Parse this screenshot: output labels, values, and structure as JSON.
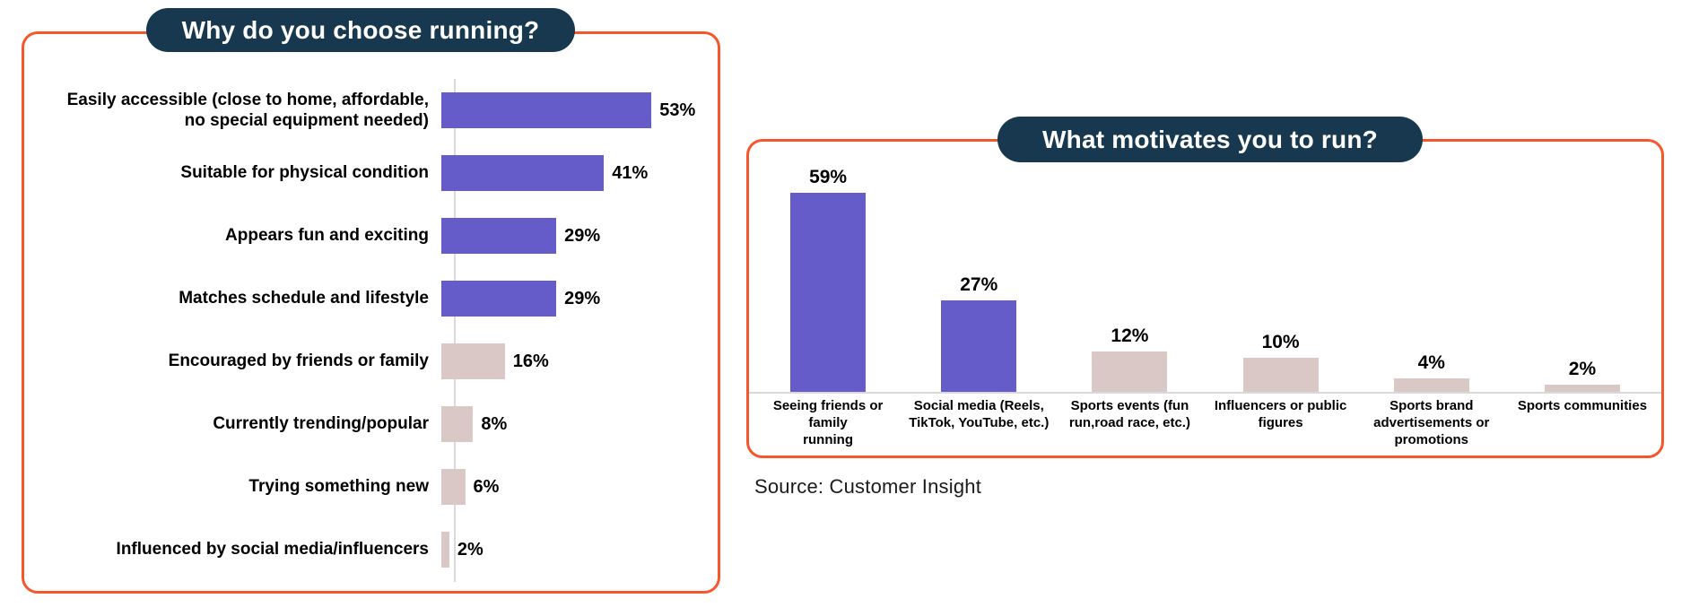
{
  "source": "Source: Customer Insight",
  "colors": {
    "purple": "#655BC9",
    "pink": "#D9C8C5",
    "navy": "#17384E",
    "orange": "#F5562B",
    "axis": "#D9D9D9"
  },
  "chart_data": [
    {
      "type": "bar",
      "orientation": "horizontal",
      "title": "Why do you choose running?",
      "categories": [
        "Easily accessible (close to home, affordable,\nno special equipment needed)",
        "Suitable for physical condition",
        "Appears fun and exciting",
        "Matches schedule and lifestyle",
        "Encouraged by friends or family",
        "Currently trending/popular",
        "Trying something new",
        "Influenced by social media/influencers"
      ],
      "values": [
        53,
        41,
        29,
        29,
        16,
        8,
        6,
        2
      ],
      "value_labels": [
        "53%",
        "41%",
        "29%",
        "29%",
        "16%",
        "8%",
        "6%",
        "2%"
      ],
      "bar_colors": [
        "purple",
        "purple",
        "purple",
        "purple",
        "pink",
        "pink",
        "pink",
        "pink"
      ],
      "xlim": [
        0,
        60
      ],
      "grid": false,
      "legend": false
    },
    {
      "type": "bar",
      "orientation": "vertical",
      "title": "What motivates you to run?",
      "categories": [
        "Seeing friends or family\nrunning",
        "Social media (Reels,\nTikTok, YouTube, etc.)",
        "Sports events (fun\nrun,road race, etc.)",
        "Influencers or public\nfigures",
        "Sports brand\nadvertisements or\npromotions",
        "Sports communities"
      ],
      "values": [
        59,
        27,
        12,
        10,
        4,
        2
      ],
      "value_labels": [
        "59%",
        "27%",
        "12%",
        "10%",
        "4%",
        "2%"
      ],
      "bar_colors": [
        "purple",
        "purple",
        "pink",
        "pink",
        "pink",
        "pink"
      ],
      "ylim": [
        0,
        65
      ],
      "grid": false,
      "legend": false
    }
  ]
}
